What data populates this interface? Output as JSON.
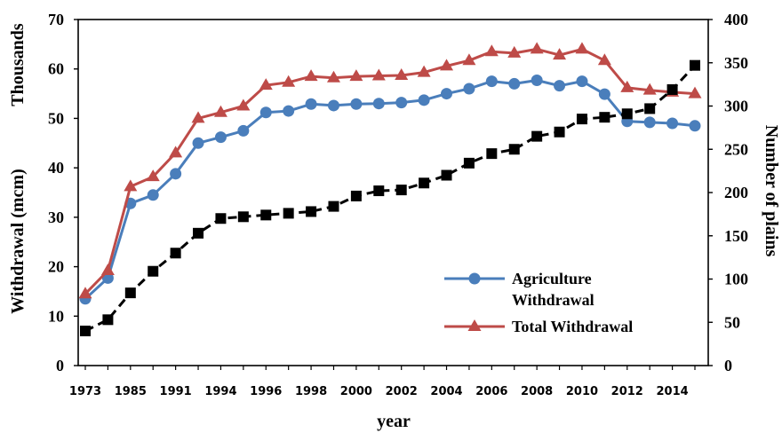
{
  "chart_data": {
    "type": "line",
    "x": [
      "1973",
      "1974",
      "1985",
      "1988",
      "1991",
      "1992",
      "1994",
      "1995",
      "1996",
      "1997",
      "1998",
      "1999",
      "2000",
      "2001",
      "2002",
      "2003",
      "2004",
      "2005",
      "2006",
      "2007",
      "2008",
      "2009",
      "2010",
      "2011",
      "2012",
      "2013",
      "2014",
      "2015"
    ],
    "xtick_labels": [
      "1973",
      "1985",
      "1991",
      "1994",
      "1996",
      "1998",
      "2000",
      "2002",
      "2004",
      "2006",
      "2008",
      "2010",
      "2012",
      "2014"
    ],
    "xlabel": "year",
    "ylabel_left": "Withdrawal (mcm)",
    "ylabel_left_units": "Thousands",
    "ylabel_right": "Number of plains",
    "ylim_left": [
      0,
      70
    ],
    "ylim_right": [
      0,
      400
    ],
    "yticks_left": [
      "0",
      "10",
      "20",
      "30",
      "40",
      "50",
      "60",
      "70"
    ],
    "yticks_right": [
      "0",
      "50",
      "100",
      "150",
      "200",
      "250",
      "300",
      "350",
      "400"
    ],
    "legend_position": "center-right",
    "series": [
      {
        "name": "Agriculture Withdrawal",
        "axis": "left",
        "color": "#4a7ebb",
        "marker": "circle",
        "values": [
          13.5,
          17.7,
          32.8,
          34.5,
          38.8,
          45.0,
          46.2,
          47.5,
          51.2,
          51.5,
          52.9,
          52.6,
          52.9,
          53.0,
          53.2,
          53.7,
          55.0,
          56.0,
          57.5,
          57.0,
          57.7,
          56.6,
          57.5,
          54.9,
          49.4,
          49.2,
          49.0,
          48.5
        ]
      },
      {
        "name": "Total Withdrawal",
        "axis": "left",
        "color": "#be4b48",
        "marker": "triangle",
        "values": [
          14.5,
          19.2,
          36.2,
          38.2,
          43.0,
          50.0,
          51.2,
          52.5,
          56.7,
          57.3,
          58.5,
          58.2,
          58.5,
          58.6,
          58.7,
          59.3,
          60.6,
          61.7,
          63.5,
          63.2,
          64.0,
          62.8,
          64.0,
          61.7,
          56.2,
          55.7,
          55.3,
          55.0
        ]
      },
      {
        "name": "Number of plains",
        "axis": "right",
        "color": "#000000",
        "marker": "square",
        "values": [
          40,
          53,
          84,
          109,
          130,
          153,
          170,
          172,
          174,
          176,
          178,
          184,
          196,
          202,
          203,
          211,
          220,
          234,
          245,
          250,
          265,
          270,
          285,
          287,
          291,
          297,
          319,
          347
        ]
      }
    ]
  },
  "legend": {
    "agri_line1": "Agriculture",
    "agri_line2": "Withdrawal",
    "total": "Total Withdrawal"
  }
}
